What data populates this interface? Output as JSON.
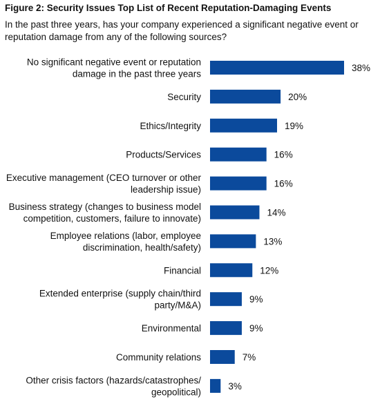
{
  "chart_data": {
    "type": "bar",
    "orientation": "horizontal",
    "title": "Figure 2: Security Issues Top List of Recent Reputation-Damaging Events",
    "subtitle": "In the past three years, has your company experienced a significant negative event or reputation damage from any of the following sources?",
    "categories": [
      [
        "No significant negative event or reputation",
        "damage in the past three years"
      ],
      [
        "Security"
      ],
      [
        "Ethics/Integrity"
      ],
      [
        "Products/Services"
      ],
      [
        "Executive management (CEO turnover or other",
        "leadership issue)"
      ],
      [
        "Business strategy (changes to business model",
        "competition, customers, failure to innovate)"
      ],
      [
        "Employee relations (labor, employee",
        "discrimination, health/safety)"
      ],
      [
        "Financial"
      ],
      [
        "Extended enterprise (supply chain/third",
        "party/M&A)"
      ],
      [
        "Environmental"
      ],
      [
        "Community relations"
      ],
      [
        "Other crisis factors (hazards/catastrophes/",
        "geopolitical)"
      ]
    ],
    "values": [
      38,
      20,
      19,
      16,
      16,
      14,
      13,
      12,
      9,
      9,
      7,
      3
    ],
    "value_suffix": "%",
    "bar_color": "#0b4a9c",
    "xlim": [
      0,
      38
    ],
    "grid": false,
    "legend": "none"
  }
}
